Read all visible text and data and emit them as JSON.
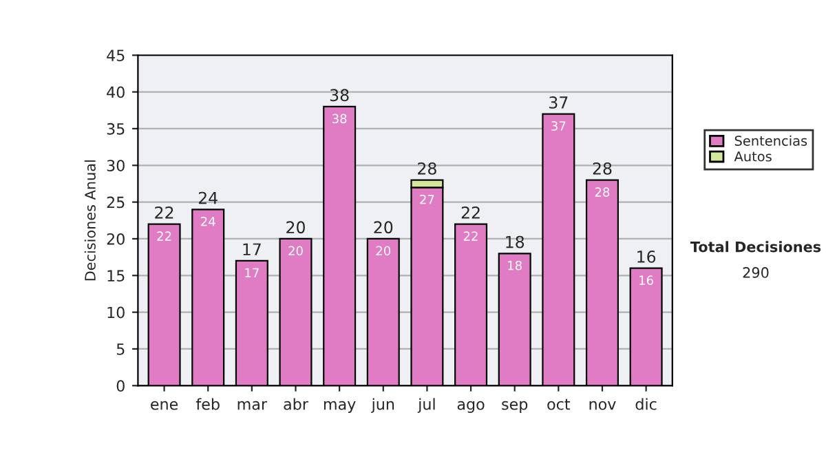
{
  "chart_data": {
    "type": "bar",
    "stacked": true,
    "ylabel": "Decisiones Anual",
    "categories": [
      "ene",
      "feb",
      "mar",
      "abr",
      "may",
      "jun",
      "jul",
      "ago",
      "sep",
      "oct",
      "nov",
      "dic"
    ],
    "series": [
      {
        "name": "Sentencias",
        "color": "#e07cc4",
        "values": [
          22,
          24,
          17,
          20,
          38,
          20,
          27,
          22,
          18,
          37,
          28,
          16
        ],
        "value_labels": [
          "22",
          "24",
          "17",
          "20",
          "38",
          "20",
          "27",
          "22",
          "18",
          "37",
          "28",
          "16"
        ]
      },
      {
        "name": "Autos",
        "color": "#d4e89c",
        "values": [
          null,
          null,
          null,
          null,
          null,
          null,
          1,
          null,
          null,
          null,
          null,
          null
        ]
      }
    ],
    "totals": [
      "22",
      "24",
      "17",
      "20",
      "38",
      "20",
      "28",
      "22",
      "18",
      "37",
      "28",
      "16"
    ],
    "ylim": [
      0,
      45
    ],
    "yticks": [
      0,
      5,
      10,
      15,
      20,
      25,
      30,
      35,
      40,
      45
    ],
    "grid": "y",
    "legend": "right",
    "annotations": [
      "Total Decisiones",
      "290"
    ]
  }
}
